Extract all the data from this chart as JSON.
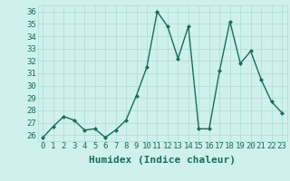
{
  "x": [
    0,
    1,
    2,
    3,
    4,
    5,
    6,
    7,
    8,
    9,
    10,
    11,
    12,
    13,
    14,
    15,
    16,
    17,
    18,
    19,
    20,
    21,
    22,
    23
  ],
  "y": [
    25.8,
    26.7,
    27.5,
    27.2,
    26.4,
    26.5,
    25.8,
    26.4,
    27.2,
    29.2,
    31.5,
    36.0,
    34.8,
    32.2,
    34.8,
    26.5,
    26.5,
    31.2,
    35.2,
    31.8,
    32.8,
    30.5,
    28.7,
    27.8
  ],
  "line_color": "#1a6b5e",
  "marker": "D",
  "marker_size": 2,
  "bg_color": "#cff0eb",
  "grid_color": "#aaddd6",
  "xlabel": "Humidex (Indice chaleur)",
  "xlabel_fontsize": 8,
  "ylim": [
    25.5,
    36.5
  ],
  "yticks": [
    26,
    27,
    28,
    29,
    30,
    31,
    32,
    33,
    34,
    35,
    36
  ],
  "xticks": [
    0,
    1,
    2,
    3,
    4,
    5,
    6,
    7,
    8,
    9,
    10,
    11,
    12,
    13,
    14,
    15,
    16,
    17,
    18,
    19,
    20,
    21,
    22,
    23
  ],
  "tick_fontsize": 6.5,
  "line_width": 1.0
}
